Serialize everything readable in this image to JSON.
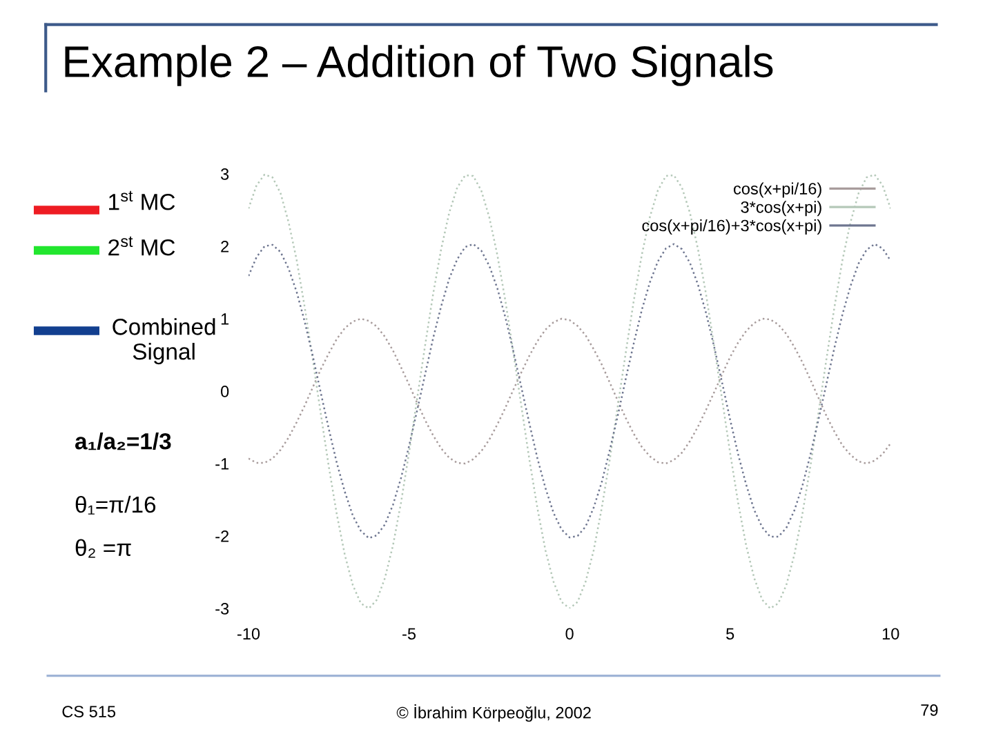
{
  "chart_data": {
    "type": "line",
    "title": "Example 2 – Addition of Two Signals",
    "x": [
      -10,
      -9.75,
      -9.5,
      -9.25,
      -9,
      -8.75,
      -8.5,
      -8.25,
      -8,
      -7.75,
      -7.5,
      -7.25,
      -7,
      -6.75,
      -6.5,
      -6.25,
      -6,
      -5.75,
      -5.5,
      -5.25,
      -5,
      -4.75,
      -4.5,
      -4.25,
      -4,
      -3.75,
      -3.5,
      -3.25,
      -3,
      -2.75,
      -2.5,
      -2.25,
      -2,
      -1.75,
      -1.5,
      -1.25,
      -1,
      -0.75,
      -0.5,
      -0.25,
      0,
      0.25,
      0.5,
      0.75,
      1,
      1.25,
      1.5,
      1.75,
      2,
      2.25,
      2.5,
      2.75,
      3,
      3.25,
      3.5,
      3.75,
      4,
      4.25,
      4.5,
      4.75,
      5,
      5.25,
      5.5,
      5.75,
      6,
      6.25,
      6.5,
      6.75,
      7,
      7.25,
      7.5,
      7.75,
      8,
      8.25,
      8.5,
      8.75,
      9,
      9.25,
      9.5,
      9.75,
      10
    ],
    "series": [
      {
        "name": "cos(x+pi/16)",
        "color": "#a89c9c",
        "values": [
          -0.93,
          -0.99,
          -0.99,
          -0.93,
          -0.81,
          -0.64,
          -0.43,
          -0.2,
          0.05,
          0.3,
          0.52,
          0.72,
          0.87,
          0.96,
          1.0,
          0.97,
          0.89,
          0.75,
          0.56,
          0.33,
          0.09,
          -0.16,
          -0.4,
          -0.61,
          -0.79,
          -0.92,
          -0.99,
          -1.0,
          -0.94,
          -0.83,
          -0.67,
          -0.46,
          -0.23,
          0.02,
          0.26,
          0.49,
          0.69,
          0.85,
          0.95,
          1.0,
          0.98,
          0.9,
          0.77,
          0.58,
          0.37,
          0.12,
          -0.13,
          -0.37,
          -0.59,
          -0.77,
          -0.9,
          -0.98,
          -1.0,
          -0.95,
          -0.85,
          -0.69,
          -0.49,
          -0.26,
          -0.02,
          0.23,
          0.47,
          0.67,
          0.83,
          0.94,
          1.0,
          0.99,
          0.92,
          0.79,
          0.61,
          0.4,
          0.16,
          -0.09,
          -0.34,
          -0.56,
          -0.75,
          -0.88,
          -0.97,
          -1.0,
          -0.96,
          -0.87,
          -0.72
        ]
      },
      {
        "name": "3*cos(x+pi)",
        "color": "#b4c8b8",
        "values": [
          2.52,
          2.84,
          2.99,
          2.95,
          2.73,
          2.33,
          1.81,
          1.16,
          0.44,
          -0.31,
          -1.04,
          -1.7,
          -2.26,
          -2.68,
          -2.93,
          -3.0,
          -2.88,
          -2.58,
          -2.13,
          -1.54,
          -0.85,
          -0.11,
          0.63,
          1.34,
          1.96,
          2.46,
          2.81,
          2.98,
          2.97,
          2.77,
          2.4,
          1.88,
          1.25,
          0.53,
          -0.21,
          -0.95,
          -1.62,
          -2.2,
          -2.63,
          -2.91,
          -3.0,
          -2.91,
          -2.63,
          -2.2,
          -1.62,
          -0.95,
          -0.21,
          0.53,
          1.25,
          1.88,
          2.4,
          2.77,
          2.97,
          2.98,
          2.81,
          2.46,
          1.96,
          1.34,
          0.63,
          -0.11,
          -0.85,
          -1.54,
          -2.13,
          -2.58,
          -2.88,
          -3.0,
          -2.93,
          -2.68,
          -2.26,
          -1.7,
          -1.04,
          -0.31,
          0.44,
          1.16,
          1.81,
          2.33,
          2.73,
          2.95,
          2.99,
          2.84,
          2.52
        ]
      },
      {
        "name": "cos(x+pi/16)+3*cos(x+pi)",
        "color": "#6e7690",
        "values": [
          1.59,
          1.85,
          2.0,
          2.02,
          1.92,
          1.69,
          1.37,
          0.96,
          0.49,
          -0.02,
          -0.52,
          -0.99,
          -1.39,
          -1.72,
          -1.93,
          -2.03,
          -1.99,
          -1.84,
          -1.57,
          -1.2,
          -0.76,
          -0.27,
          0.23,
          0.73,
          1.17,
          1.55,
          1.82,
          1.99,
          2.03,
          1.94,
          1.73,
          1.42,
          1.02,
          0.55,
          0.05,
          -0.45,
          -0.93,
          -1.34,
          -1.68,
          -1.91,
          -2.02,
          -2.0,
          -1.87,
          -1.61,
          -1.26,
          -0.82,
          -0.34,
          0.17,
          0.66,
          1.12,
          1.5,
          1.79,
          1.97,
          2.03,
          1.96,
          1.77,
          1.47,
          1.08,
          0.62,
          0.12,
          -0.39,
          -0.87,
          -1.29,
          -1.64,
          -1.88,
          -2.01,
          -2.01,
          -1.89,
          -1.65,
          -1.31,
          -0.88,
          -0.4,
          0.1,
          0.6,
          1.06,
          1.45,
          1.76,
          1.95,
          2.03,
          1.97,
          1.8
        ]
      }
    ],
    "xlim": [
      -10,
      10
    ],
    "ylim": [
      -3,
      3
    ],
    "xticks": [
      -10,
      -5,
      0,
      5,
      10
    ],
    "yticks": [
      -3,
      -2,
      -1,
      0,
      1,
      2,
      3
    ],
    "line_style": "dotted",
    "legend": "top right",
    "annotations": [
      "1$^{st}$ MC",
      "2$^{st}$ MC",
      "Combined\nSignal",
      "a₁/a₂=1/3",
      "θ₁=π/16",
      "θ₂ =π",
      "CS 515",
      "© İbrahim Körpeoğlu, 2002",
      "79"
    ]
  }
}
